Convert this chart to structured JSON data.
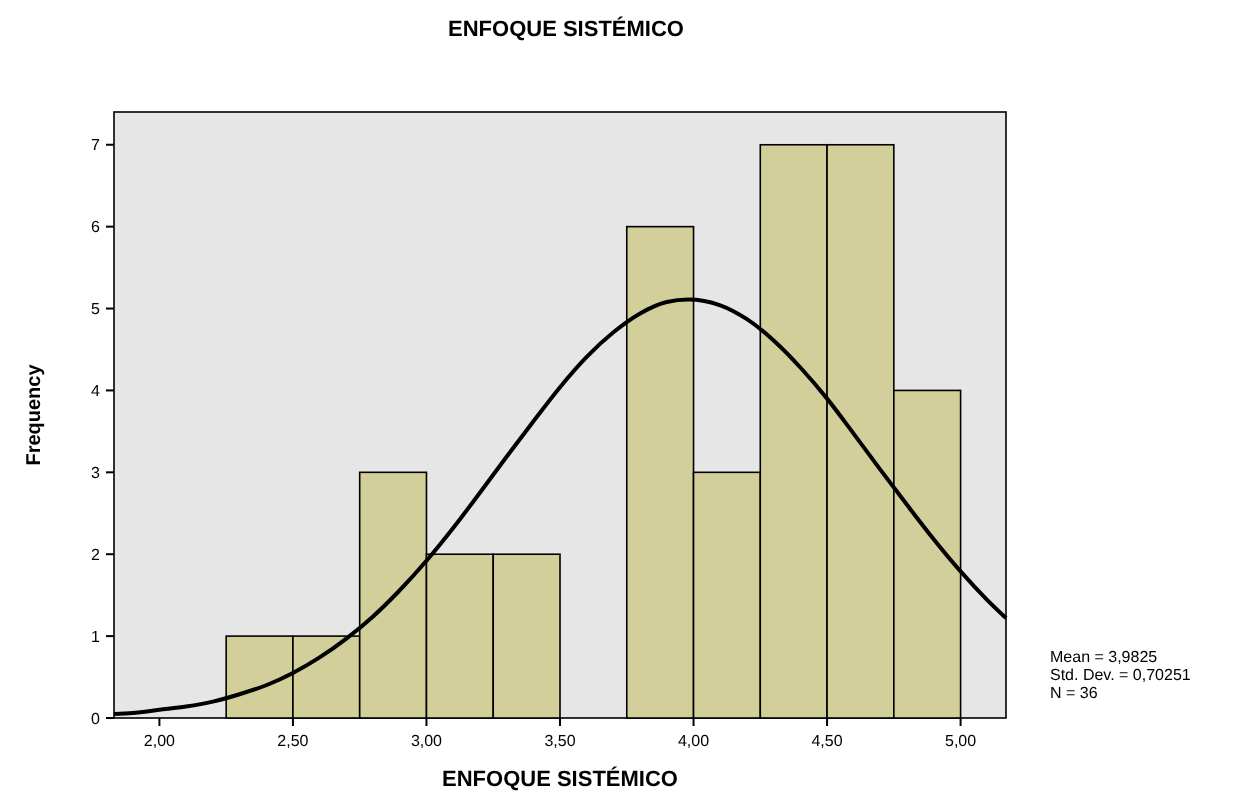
{
  "chart_data": {
    "type": "histogram",
    "title": "ENFOQUE SISTÉMICO",
    "xlabel": "ENFOQUE SISTÉMICO",
    "ylabel": "Frequency",
    "bins": [
      2.25,
      2.5,
      2.75,
      3.0,
      3.25,
      3.5,
      3.75,
      4.0,
      4.25,
      4.5,
      4.75,
      5.0
    ],
    "values": [
      1,
      1,
      3,
      2,
      2,
      0,
      6,
      3,
      7,
      7,
      4
    ],
    "color": "#d3cf9a",
    "series": [
      {
        "type": "line",
        "color": "#000000",
        "x": [
          1.83,
          1.9,
          2.0,
          2.1,
          2.2,
          2.3,
          2.4,
          2.5,
          2.6,
          2.7,
          2.8,
          2.9,
          3.0,
          3.1,
          3.2,
          3.3,
          3.4,
          3.5,
          3.6,
          3.7,
          3.8,
          3.9,
          3.98,
          4.1,
          4.2,
          4.3,
          4.4,
          4.5,
          4.6,
          4.7,
          4.8,
          4.9,
          5.0,
          5.1,
          5.17
        ],
        "values": [
          0.05,
          0.06,
          0.1,
          0.14,
          0.2,
          0.29,
          0.4,
          0.55,
          0.74,
          0.97,
          1.24,
          1.56,
          1.92,
          2.32,
          2.75,
          3.19,
          3.62,
          4.04,
          4.41,
          4.71,
          4.94,
          5.08,
          5.11,
          5.04,
          4.87,
          4.61,
          4.28,
          3.9,
          3.47,
          3.03,
          2.6,
          2.18,
          1.79,
          1.44,
          1.22
        ]
      }
    ],
    "xlim": [
      1.83,
      5.17
    ],
    "ylim": [
      0,
      7.4
    ],
    "xticks": [
      {
        "value": 2,
        "label": "2,00"
      },
      {
        "value": 2.5,
        "label": "2,50"
      },
      {
        "value": 3,
        "label": "3,00"
      },
      {
        "value": 3.5,
        "label": "3,50"
      },
      {
        "value": 4,
        "label": "4,00"
      },
      {
        "value": 4.5,
        "label": "4,50"
      },
      {
        "value": 5,
        "label": "5,00"
      }
    ],
    "yticks": [
      0,
      1,
      2,
      3,
      4,
      5,
      6,
      7
    ],
    "annotations": [
      "Mean = 3,9825",
      "Std. Dev. = 0,70251",
      "N = 36"
    ]
  }
}
